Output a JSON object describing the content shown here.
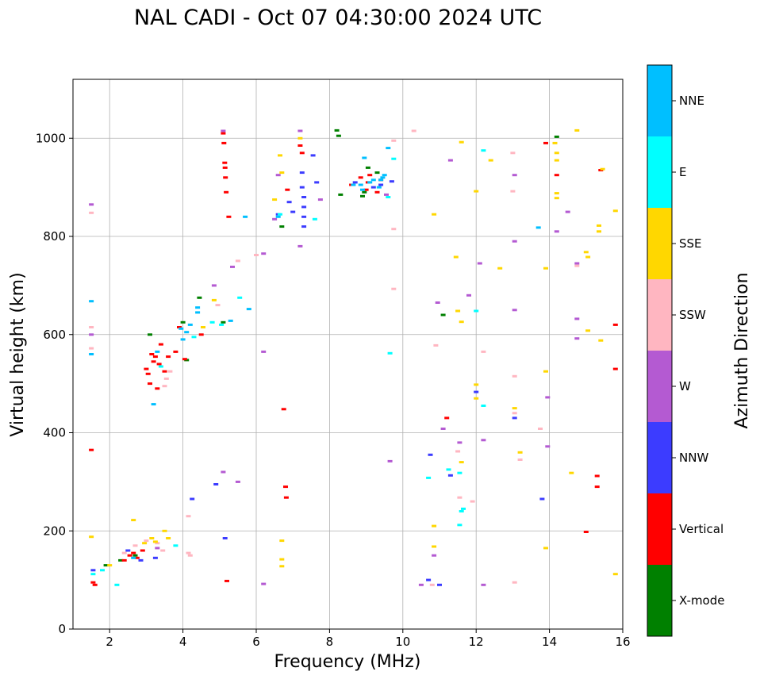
{
  "chart_data": {
    "type": "scatter",
    "title": "NAL CADI - Oct 07 04:30:00 2024 UTC",
    "xlabel": "Frequency (MHz)",
    "ylabel": "Virtual height (km)",
    "xlim": [
      1,
      16
    ],
    "ylim": [
      0,
      1120
    ],
    "x_ticks": [
      2,
      4,
      6,
      8,
      10,
      12,
      14,
      16
    ],
    "x_tick_labels": [
      "2",
      "4",
      "6",
      "8",
      "10",
      "12",
      "14",
      "16"
    ],
    "y_ticks": [
      0,
      200,
      400,
      600,
      800,
      1000
    ],
    "y_tick_labels": [
      "0",
      "200",
      "400",
      "600",
      "800",
      "1000"
    ],
    "grid": true,
    "colorbar": {
      "label": "Azimuth Direction",
      "position": "right",
      "categories": [
        {
          "name": "X-mode",
          "color": "#008000"
        },
        {
          "name": "Vertical",
          "color": "#ff0000"
        },
        {
          "name": "NNW",
          "color": "#3c3cff"
        },
        {
          "name": "W",
          "color": "#b45ad2"
        },
        {
          "name": "SSW",
          "color": "#ffb6c1"
        },
        {
          "name": "SSE",
          "color": "#ffd700"
        },
        {
          "name": "E",
          "color": "#00ffff"
        },
        {
          "name": "NNE",
          "color": "#00bfff"
        }
      ]
    },
    "series": [
      {
        "name": "X-mode",
        "color": "#008000",
        "points": [
          [
            1.9,
            130
          ],
          [
            2.3,
            140
          ],
          [
            2.7,
            150
          ],
          [
            3.1,
            600
          ],
          [
            4.0,
            625
          ],
          [
            4.1,
            548
          ],
          [
            4.45,
            675
          ],
          [
            5.1,
            625
          ],
          [
            6.7,
            820
          ],
          [
            8.2,
            1016
          ],
          [
            8.25,
            1005
          ],
          [
            8.3,
            885
          ],
          [
            8.9,
            882
          ],
          [
            8.95,
            890
          ],
          [
            9.05,
            940
          ],
          [
            9.3,
            930
          ],
          [
            11.1,
            640
          ],
          [
            14.2,
            1003
          ]
        ]
      },
      {
        "name": "Vertical",
        "color": "#ff0000",
        "points": [
          [
            1.5,
            365
          ],
          [
            1.55,
            95
          ],
          [
            1.6,
            90
          ],
          [
            2.4,
            140
          ],
          [
            2.55,
            150
          ],
          [
            2.65,
            155
          ],
          [
            2.75,
            145
          ],
          [
            2.9,
            160
          ],
          [
            3.0,
            530
          ],
          [
            3.05,
            520
          ],
          [
            3.1,
            500
          ],
          [
            3.15,
            560
          ],
          [
            3.2,
            545
          ],
          [
            3.25,
            555
          ],
          [
            3.3,
            490
          ],
          [
            3.35,
            540
          ],
          [
            3.4,
            580
          ],
          [
            3.5,
            525
          ],
          [
            3.6,
            555
          ],
          [
            3.8,
            565
          ],
          [
            3.9,
            615
          ],
          [
            4.05,
            550
          ],
          [
            4.5,
            600
          ],
          [
            5.1,
            1010
          ],
          [
            5.12,
            990
          ],
          [
            5.14,
            950
          ],
          [
            5.15,
            940
          ],
          [
            5.16,
            920
          ],
          [
            5.18,
            890
          ],
          [
            5.2,
            98
          ],
          [
            5.25,
            840
          ],
          [
            6.75,
            448
          ],
          [
            6.8,
            290
          ],
          [
            6.82,
            268
          ],
          [
            6.85,
            895
          ],
          [
            7.2,
            985
          ],
          [
            7.25,
            970
          ],
          [
            8.6,
            905
          ],
          [
            8.85,
            920
          ],
          [
            9.0,
            895
          ],
          [
            9.05,
            910
          ],
          [
            9.1,
            925
          ],
          [
            9.3,
            890
          ],
          [
            9.4,
            915
          ],
          [
            11.2,
            430
          ],
          [
            13.9,
            990
          ],
          [
            14.2,
            925
          ],
          [
            15.0,
            198
          ],
          [
            15.3,
            312
          ],
          [
            15.3,
            290
          ],
          [
            15.4,
            935
          ],
          [
            15.8,
            620
          ],
          [
            15.8,
            530
          ]
        ]
      },
      {
        "name": "NNW",
        "color": "#3c3cff",
        "points": [
          [
            1.55,
            120
          ],
          [
            2.5,
            160
          ],
          [
            2.85,
            140
          ],
          [
            3.25,
            145
          ],
          [
            4.25,
            265
          ],
          [
            4.9,
            295
          ],
          [
            5.15,
            185
          ],
          [
            6.6,
            845
          ],
          [
            6.9,
            870
          ],
          [
            7.0,
            850
          ],
          [
            7.25,
            930
          ],
          [
            7.25,
            900
          ],
          [
            7.3,
            880
          ],
          [
            7.3,
            860
          ],
          [
            7.3,
            840
          ],
          [
            7.3,
            820
          ],
          [
            7.55,
            965
          ],
          [
            7.65,
            910
          ],
          [
            8.7,
            910
          ],
          [
            9.2,
            900
          ],
          [
            9.4,
            905
          ],
          [
            9.7,
            912
          ],
          [
            10.7,
            100
          ],
          [
            10.75,
            355
          ],
          [
            11.0,
            90
          ],
          [
            11.3,
            313
          ],
          [
            12.0,
            483
          ],
          [
            13.05,
            430
          ],
          [
            13.8,
            265
          ]
        ]
      },
      {
        "name": "W",
        "color": "#b45ad2",
        "points": [
          [
            1.5,
            865
          ],
          [
            1.5,
            600
          ],
          [
            3.3,
            165
          ],
          [
            4.85,
            700
          ],
          [
            5.1,
            1015
          ],
          [
            5.1,
            320
          ],
          [
            5.35,
            738
          ],
          [
            5.5,
            300
          ],
          [
            6.2,
            765
          ],
          [
            6.2,
            565
          ],
          [
            6.2,
            92
          ],
          [
            6.5,
            835
          ],
          [
            6.6,
            925
          ],
          [
            7.2,
            1015
          ],
          [
            7.2,
            780
          ],
          [
            7.75,
            875
          ],
          [
            9.55,
            885
          ],
          [
            9.65,
            342
          ],
          [
            10.5,
            90
          ],
          [
            10.85,
            150
          ],
          [
            10.95,
            665
          ],
          [
            11.1,
            408
          ],
          [
            11.3,
            955
          ],
          [
            11.55,
            380
          ],
          [
            11.8,
            680
          ],
          [
            12.1,
            745
          ],
          [
            12.2,
            385
          ],
          [
            12.2,
            90
          ],
          [
            13.05,
            925
          ],
          [
            13.05,
            650
          ],
          [
            13.05,
            790
          ],
          [
            13.95,
            472
          ],
          [
            13.95,
            372
          ],
          [
            14.2,
            810
          ],
          [
            14.5,
            850
          ],
          [
            14.75,
            745
          ],
          [
            14.75,
            632
          ],
          [
            14.75,
            592
          ]
        ]
      },
      {
        "name": "SSW",
        "color": "#ffb6c1",
        "points": [
          [
            1.5,
            615
          ],
          [
            1.5,
            848
          ],
          [
            1.5,
            572
          ],
          [
            2.4,
            155
          ],
          [
            2.7,
            170
          ],
          [
            3.0,
            180
          ],
          [
            3.3,
            175
          ],
          [
            3.45,
            160
          ],
          [
            3.5,
            495
          ],
          [
            3.55,
            510
          ],
          [
            3.65,
            525
          ],
          [
            4.15,
            230
          ],
          [
            4.15,
            155
          ],
          [
            4.2,
            150
          ],
          [
            4.95,
            660
          ],
          [
            5.5,
            750
          ],
          [
            6.0,
            762
          ],
          [
            9.75,
            995
          ],
          [
            9.75,
            815
          ],
          [
            9.75,
            693
          ],
          [
            10.3,
            1015
          ],
          [
            10.8,
            90
          ],
          [
            10.9,
            578
          ],
          [
            11.5,
            362
          ],
          [
            11.55,
            268
          ],
          [
            11.9,
            260
          ],
          [
            12.2,
            565
          ],
          [
            13.0,
            970
          ],
          [
            13.0,
            892
          ],
          [
            13.05,
            515
          ],
          [
            13.05,
            440
          ],
          [
            13.05,
            95
          ],
          [
            13.2,
            345
          ],
          [
            13.75,
            408
          ],
          [
            14.75,
            740
          ]
        ]
      },
      {
        "name": "SSE",
        "color": "#ffd700",
        "points": [
          [
            1.5,
            188
          ],
          [
            2.0,
            130
          ],
          [
            2.65,
            222
          ],
          [
            2.95,
            175
          ],
          [
            3.15,
            185
          ],
          [
            3.25,
            178
          ],
          [
            3.5,
            200
          ],
          [
            3.6,
            185
          ],
          [
            4.55,
            615
          ],
          [
            4.85,
            670
          ],
          [
            6.5,
            875
          ],
          [
            6.65,
            965
          ],
          [
            6.7,
            930
          ],
          [
            6.7,
            180
          ],
          [
            6.7,
            142
          ],
          [
            6.7,
            128
          ],
          [
            7.2,
            1000
          ],
          [
            10.85,
            845
          ],
          [
            10.85,
            210
          ],
          [
            10.85,
            168
          ],
          [
            11.45,
            758
          ],
          [
            11.5,
            648
          ],
          [
            11.6,
            992
          ],
          [
            11.6,
            626
          ],
          [
            11.6,
            340
          ],
          [
            12.0,
            892
          ],
          [
            12.0,
            498
          ],
          [
            12.0,
            470
          ],
          [
            12.4,
            955
          ],
          [
            12.65,
            735
          ],
          [
            13.05,
            450
          ],
          [
            13.2,
            360
          ],
          [
            13.9,
            735
          ],
          [
            13.9,
            525
          ],
          [
            13.9,
            165
          ],
          [
            14.15,
            990
          ],
          [
            14.2,
            970
          ],
          [
            14.2,
            955
          ],
          [
            14.2,
            888
          ],
          [
            14.2,
            878
          ],
          [
            14.6,
            318
          ],
          [
            14.75,
            1016
          ],
          [
            15.0,
            768
          ],
          [
            15.05,
            758
          ],
          [
            15.05,
            608
          ],
          [
            15.35,
            822
          ],
          [
            15.35,
            810
          ],
          [
            15.4,
            588
          ],
          [
            15.45,
            937
          ],
          [
            15.8,
            852
          ],
          [
            15.8,
            112
          ]
        ]
      },
      {
        "name": "E",
        "color": "#00ffff",
        "points": [
          [
            1.55,
            112
          ],
          [
            1.8,
            120
          ],
          [
            2.2,
            90
          ],
          [
            3.4,
            535
          ],
          [
            3.8,
            170
          ],
          [
            4.3,
            595
          ],
          [
            4.8,
            625
          ],
          [
            5.05,
            620
          ],
          [
            5.55,
            675
          ],
          [
            6.65,
            845
          ],
          [
            7.6,
            835
          ],
          [
            9.6,
            880
          ],
          [
            9.75,
            958
          ],
          [
            9.65,
            562
          ],
          [
            10.7,
            308
          ],
          [
            11.25,
            325
          ],
          [
            11.55,
            318
          ],
          [
            11.55,
            212
          ],
          [
            11.6,
            240
          ],
          [
            11.65,
            245
          ],
          [
            12.0,
            648
          ],
          [
            12.2,
            455
          ],
          [
            12.2,
            975
          ]
        ]
      },
      {
        "name": "NNE",
        "color": "#00bfff",
        "points": [
          [
            1.5,
            668
          ],
          [
            1.5,
            560
          ],
          [
            2.65,
            145
          ],
          [
            3.2,
            458
          ],
          [
            3.3,
            565
          ],
          [
            3.95,
            612
          ],
          [
            4.0,
            590
          ],
          [
            4.1,
            605
          ],
          [
            4.2,
            620
          ],
          [
            4.4,
            645
          ],
          [
            4.4,
            655
          ],
          [
            5.3,
            628
          ],
          [
            5.7,
            840
          ],
          [
            5.8,
            652
          ],
          [
            6.6,
            840
          ],
          [
            8.65,
            905
          ],
          [
            8.85,
            905
          ],
          [
            8.9,
            895
          ],
          [
            8.95,
            960
          ],
          [
            9.1,
            910
          ],
          [
            9.2,
            915
          ],
          [
            9.35,
            900
          ],
          [
            9.4,
            915
          ],
          [
            9.45,
            920
          ],
          [
            9.5,
            925
          ],
          [
            9.6,
            980
          ],
          [
            13.7,
            818
          ]
        ]
      }
    ]
  }
}
